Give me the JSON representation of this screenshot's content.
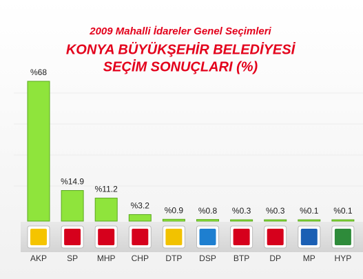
{
  "chart_data": {
    "type": "bar",
    "title": "2009 Mahalli İdareler Genel Seçimleri",
    "subtitle": [
      "KONYA BÜYÜKŞEHİR BELEDİYESİ",
      "SEÇİM SONUÇLARI (%)"
    ],
    "categories": [
      "AKP",
      "SP",
      "MHP",
      "CHP",
      "DTP",
      "DSP",
      "BTP",
      "DP",
      "MP",
      "HYP"
    ],
    "values": [
      68,
      14.9,
      11.2,
      3.2,
      0.9,
      0.8,
      0.3,
      0.3,
      0.1,
      0.1
    ],
    "value_labels": [
      "%68",
      "%14.9",
      "%11.2",
      "%3.2",
      "%0.9",
      "%0.8",
      "%0.3",
      "%0.3",
      "%0.1",
      "%0.1"
    ],
    "color": "#8fe43c"
  }
}
